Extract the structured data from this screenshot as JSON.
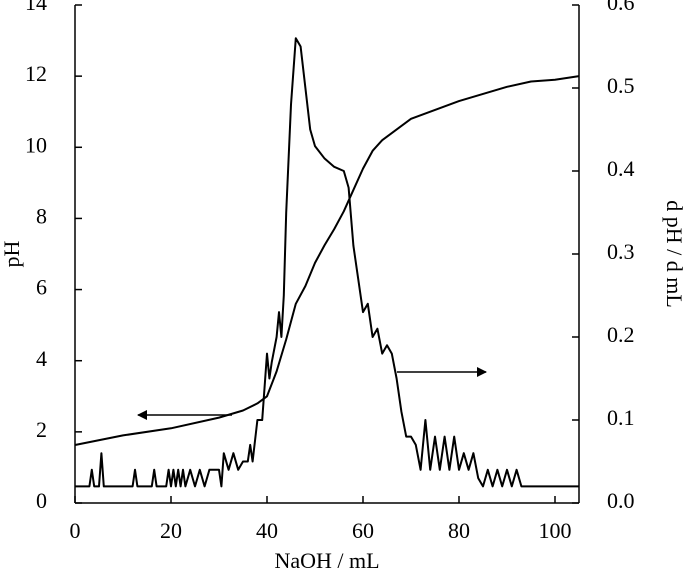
{
  "chart_data": {
    "type": "line",
    "xlabel": "NaOH / mL",
    "ylabel": "pH",
    "y2label": "d pH / d mL",
    "xlim": [
      0,
      105
    ],
    "xticks": [
      0,
      20,
      40,
      60,
      80,
      100
    ],
    "ylim": [
      0,
      14
    ],
    "yticks": [
      0,
      2,
      4,
      6,
      8,
      10,
      12,
      14
    ],
    "y2lim": [
      0,
      0.6
    ],
    "y2ticks": [
      {
        "value": 0,
        "label": "0.0"
      },
      0.1,
      0.2,
      0.3,
      0.4,
      0.5,
      0.6
    ],
    "series": [
      {
        "color": "#000000",
        "x": [
          0,
          10,
          20,
          30,
          35,
          38,
          40,
          42,
          44,
          46,
          48,
          50,
          52,
          54,
          56,
          58,
          60,
          62,
          64,
          66,
          70,
          75,
          80,
          85,
          90,
          95,
          100,
          105
        ],
        "values": [
          1.63,
          1.9,
          2.1,
          2.4,
          2.6,
          2.8,
          3.0,
          3.7,
          4.6,
          5.6,
          6.1,
          6.75,
          7.25,
          7.7,
          8.2,
          8.8,
          9.4,
          9.9,
          10.2,
          10.4,
          10.8,
          11.05,
          11.3,
          11.5,
          11.7,
          11.85,
          11.9,
          12.0
        ]
      },
      {
        "color": "#000000",
        "axis": "y2",
        "x": [
          0,
          3,
          3.5,
          4,
          5,
          5.5,
          6,
          12,
          12.5,
          13,
          16,
          16.5,
          17,
          19,
          19.5,
          20,
          20.5,
          21,
          21.5,
          22,
          22.5,
          23,
          24,
          25,
          26,
          27,
          28,
          29,
          30,
          30.5,
          31,
          32,
          33,
          34,
          35,
          36,
          36.5,
          37,
          38,
          39,
          40,
          40.5,
          41,
          42,
          42.5,
          43,
          43.5,
          44,
          45,
          46,
          47,
          48,
          49,
          50,
          52,
          54,
          56,
          57,
          58,
          59,
          60,
          61,
          62,
          63,
          64,
          65,
          66,
          67,
          68,
          69,
          70,
          71,
          72,
          73,
          74,
          75,
          76,
          77,
          78,
          79,
          80,
          81,
          82,
          83,
          84,
          85,
          86,
          87,
          88,
          89,
          90,
          91,
          92,
          93,
          105
        ],
        "values": [
          0.02,
          0.02,
          0.04,
          0.02,
          0.02,
          0.06,
          0.02,
          0.02,
          0.04,
          0.02,
          0.02,
          0.04,
          0.02,
          0.02,
          0.04,
          0.02,
          0.04,
          0.02,
          0.04,
          0.02,
          0.04,
          0.02,
          0.04,
          0.02,
          0.04,
          0.02,
          0.04,
          0.04,
          0.04,
          0.02,
          0.06,
          0.04,
          0.06,
          0.04,
          0.05,
          0.05,
          0.07,
          0.05,
          0.1,
          0.1,
          0.18,
          0.15,
          0.17,
          0.2,
          0.23,
          0.2,
          0.25,
          0.35,
          0.48,
          0.56,
          0.55,
          0.5,
          0.45,
          0.43,
          0.415,
          0.405,
          0.4,
          0.38,
          0.31,
          0.27,
          0.23,
          0.24,
          0.2,
          0.21,
          0.18,
          0.19,
          0.18,
          0.15,
          0.11,
          0.08,
          0.08,
          0.07,
          0.04,
          0.1,
          0.04,
          0.08,
          0.04,
          0.08,
          0.04,
          0.08,
          0.04,
          0.06,
          0.04,
          0.06,
          0.03,
          0.02,
          0.04,
          0.02,
          0.04,
          0.02,
          0.04,
          0.02,
          0.04,
          0.02,
          0.02
        ]
      }
    ]
  }
}
